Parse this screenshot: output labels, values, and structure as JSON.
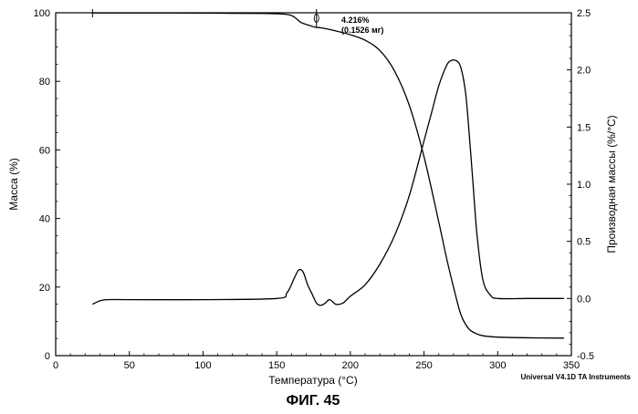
{
  "chart_data": {
    "type": "line",
    "title": "ФИГ. 45",
    "xlabel": "Температура (°C)",
    "ylabel": "Масса (%)",
    "y2label": "Производная массы (%/°C)",
    "xlim": [
      0,
      350
    ],
    "ylim": [
      0,
      100
    ],
    "y2lim": [
      -0.5,
      2.5
    ],
    "xticks": [
      "0",
      "50",
      "100",
      "150",
      "200",
      "250",
      "300",
      "350"
    ],
    "yticks": [
      "0",
      "20",
      "40",
      "60",
      "80",
      "100"
    ],
    "y2ticks": [
      "-0.5",
      "0.0",
      "0.5",
      "1.0",
      "1.5",
      "2.0",
      "2.5"
    ],
    "grid": false,
    "series": [
      {
        "name": "Масса",
        "axis": "left",
        "x": [
          25,
          30,
          50,
          100,
          140,
          155,
          160,
          163,
          166,
          170,
          173,
          176,
          180,
          185,
          190,
          200,
          210,
          220,
          230,
          240,
          250,
          260,
          265,
          270,
          275,
          280,
          285,
          290,
          300,
          320,
          345
        ],
        "y": [
          99.95,
          99.95,
          99.95,
          99.9,
          99.8,
          99.6,
          99.2,
          98.4,
          97.3,
          96.6,
          96.2,
          95.8,
          95.6,
          95.2,
          94.7,
          93.6,
          92.0,
          89.0,
          83.0,
          73.0,
          58.0,
          39.0,
          29.0,
          20.0,
          12.0,
          8.0,
          6.5,
          5.8,
          5.4,
          5.2,
          5.1
        ]
      },
      {
        "name": "Производная массы",
        "axis": "right",
        "x": [
          25,
          30,
          35,
          50,
          100,
          150,
          157,
          162,
          165,
          168,
          171,
          174,
          177,
          180,
          183,
          186,
          190,
          195,
          200,
          210,
          220,
          230,
          240,
          250,
          255,
          260,
          265,
          268,
          272,
          275,
          278,
          280,
          283,
          286,
          290,
          295,
          300,
          320,
          345
        ],
        "y": [
          -0.05,
          -0.02,
          -0.01,
          -0.01,
          -0.01,
          0.0,
          0.05,
          0.18,
          0.25,
          0.23,
          0.12,
          0.04,
          -0.04,
          -0.06,
          -0.04,
          -0.01,
          -0.05,
          -0.04,
          0.02,
          0.12,
          0.3,
          0.55,
          0.9,
          1.38,
          1.62,
          1.86,
          2.03,
          2.08,
          2.08,
          2.02,
          1.82,
          1.55,
          1.05,
          0.55,
          0.16,
          0.03,
          0.0,
          0.0,
          0.0
        ]
      }
    ],
    "annotations": [
      "4.216%",
      "(0.1526 мг)"
    ],
    "credit": "Universal V4.1D TA Instruments"
  }
}
